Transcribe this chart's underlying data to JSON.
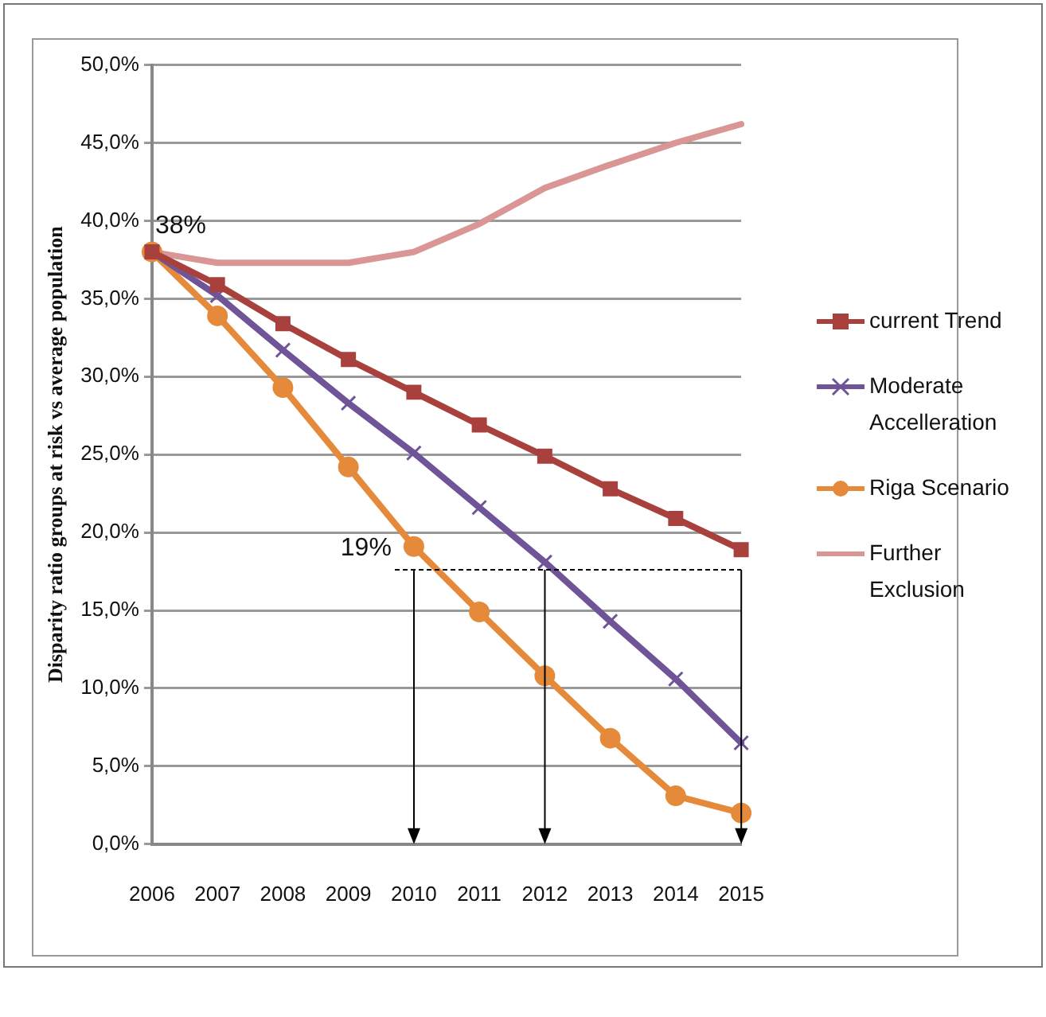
{
  "chart_data": {
    "type": "line",
    "ylabel": "Disparity ratio groups at risk vs average population",
    "categories": [
      "2006",
      "2007",
      "2008",
      "2009",
      "2010",
      "2011",
      "2012",
      "2013",
      "2014",
      "2015"
    ],
    "series": [
      {
        "name": "current Trend",
        "color": "#a8403d",
        "marker": "square",
        "values": [
          38,
          35.9,
          33.4,
          31.1,
          29,
          26.9,
          24.9,
          22.8,
          20.9,
          18.9
        ]
      },
      {
        "name": "Moderate Accelleration",
        "color": "#6f5497",
        "marker": "cross",
        "values": [
          38,
          35.2,
          31.7,
          28.3,
          25.1,
          21.6,
          18.1,
          14.3,
          10.6,
          6.5
        ]
      },
      {
        "name": "Riga Scenario",
        "color": "#e58a3a",
        "marker": "circle",
        "values": [
          38,
          33.9,
          29.3,
          24.2,
          19.1,
          14.9,
          10.8,
          6.8,
          3.1,
          2.0
        ]
      },
      {
        "name": "Further Exclusion",
        "color": "#d99694",
        "marker": "none",
        "values": [
          38,
          37.3,
          37.3,
          37.3,
          38,
          39.8,
          42.1,
          43.6,
          45,
          46.2
        ]
      }
    ],
    "ylim": [
      0,
      50
    ],
    "yticks": [
      {
        "value": 0,
        "label": "0,0%"
      },
      {
        "value": 5,
        "label": "5,0%"
      },
      {
        "value": 10,
        "label": "10,0%"
      },
      {
        "value": 15,
        "label": "15,0%"
      },
      {
        "value": 20,
        "label": "20,0%"
      },
      {
        "value": 25,
        "label": "25,0%"
      },
      {
        "value": 30,
        "label": "30,0%"
      },
      {
        "value": 35,
        "label": "35,0%"
      },
      {
        "value": 40,
        "label": "40,0%"
      },
      {
        "value": 45,
        "label": "45,0%"
      },
      {
        "value": 50,
        "label": "50,0%"
      }
    ],
    "grid": "y",
    "legend": "right",
    "annotations": [
      {
        "text": "38%",
        "x": "2006",
        "y": 38
      },
      {
        "text": "19%",
        "x": "2010",
        "y": 19
      }
    ]
  }
}
